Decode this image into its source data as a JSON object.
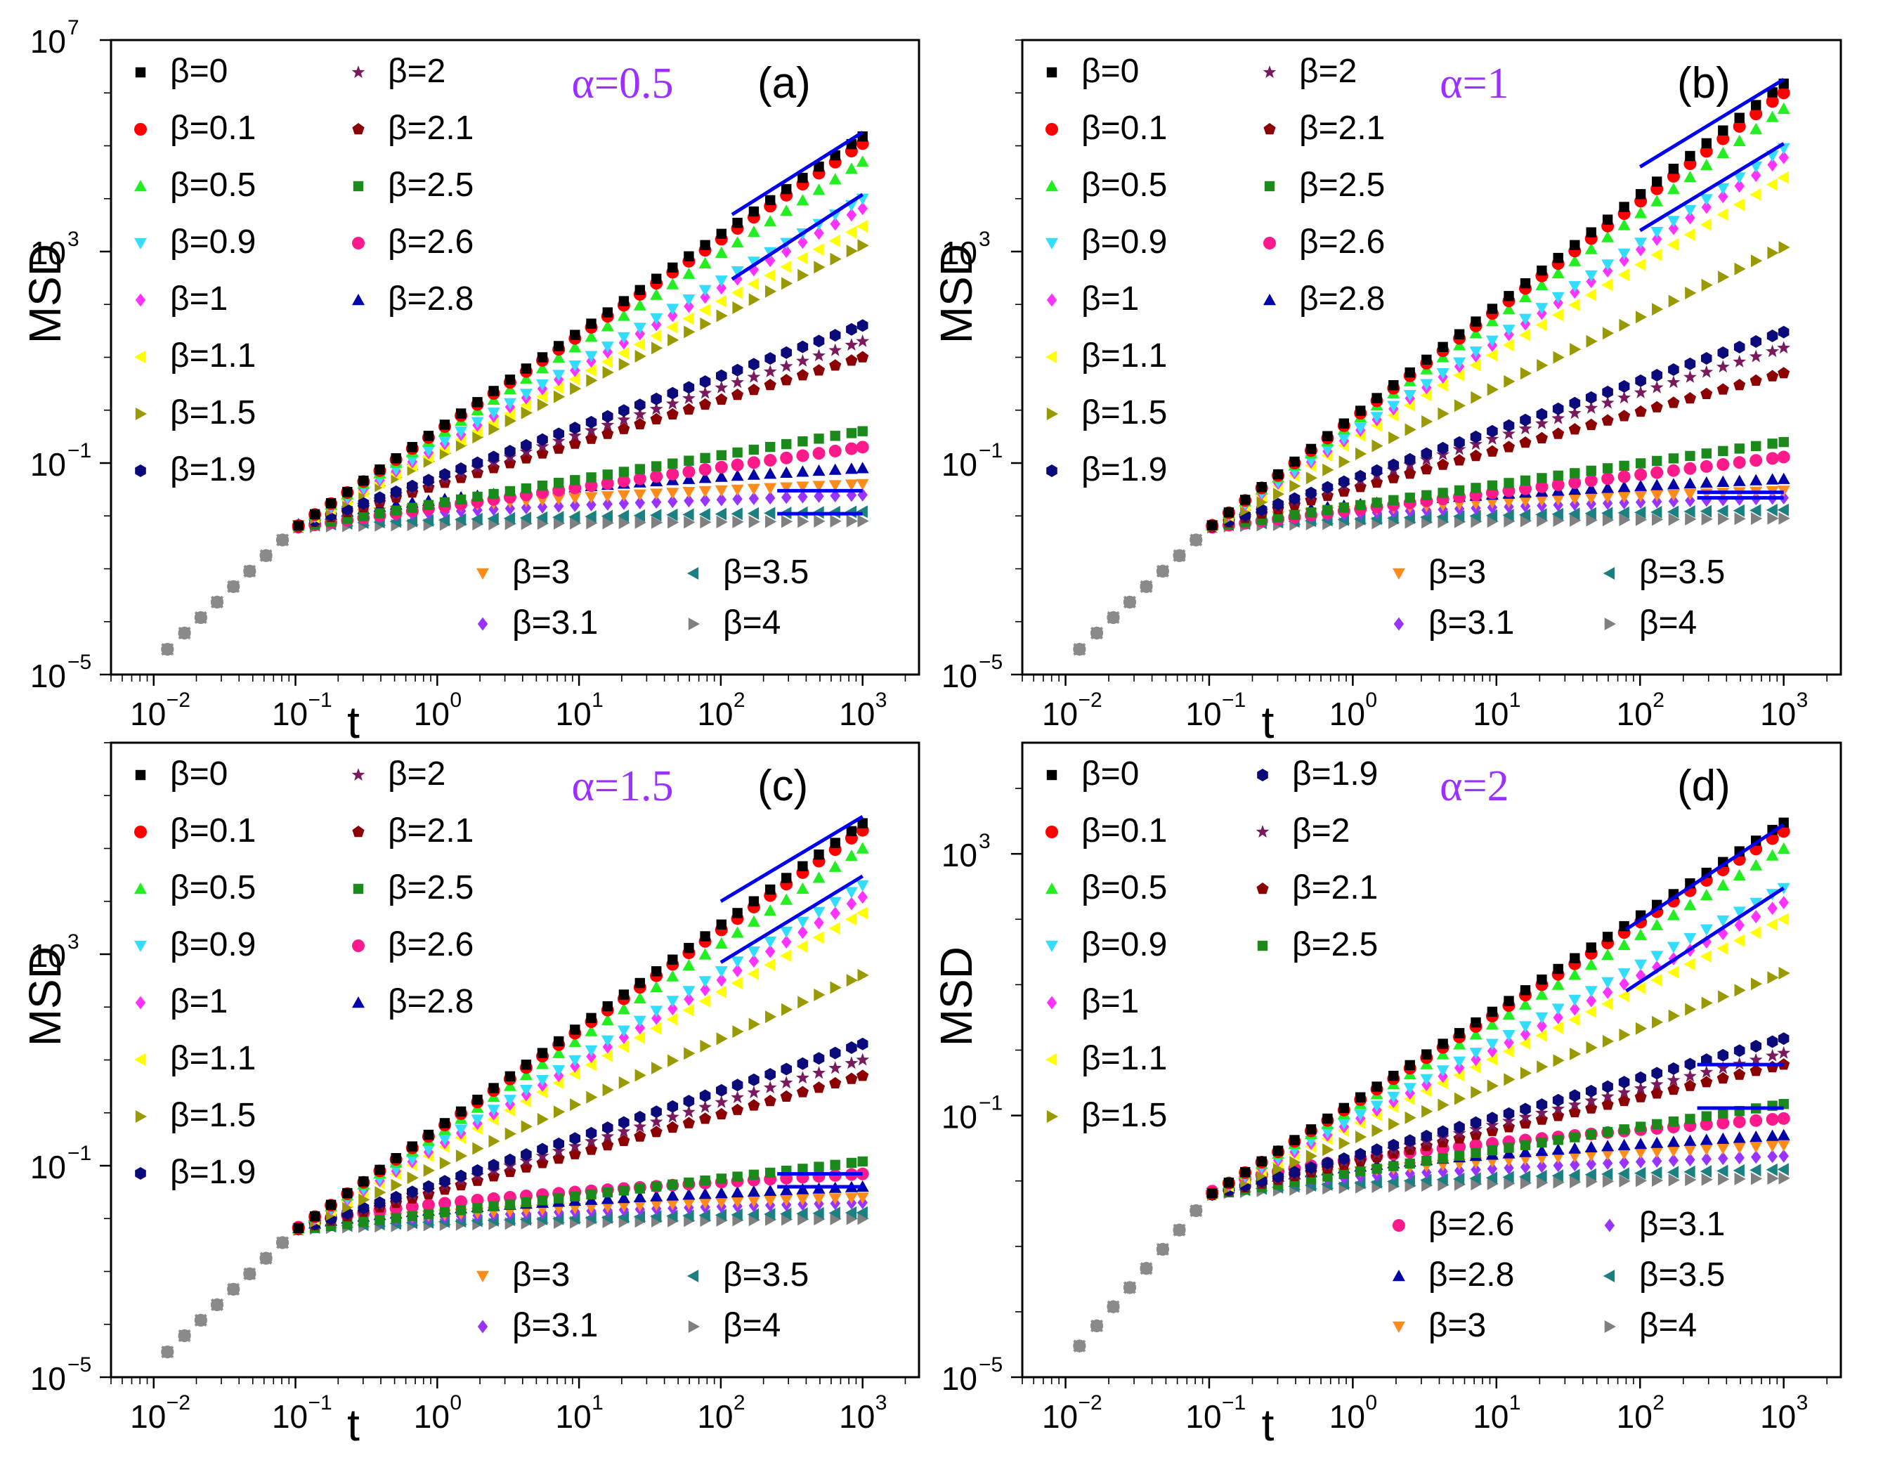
{
  "figure": {
    "t_values": [
      0.0125,
      0.0165,
      0.0215,
      0.028,
      0.0365,
      0.0475,
      0.062,
      0.081,
      0.105,
      0.137,
      0.178,
      0.232,
      0.302,
      0.393,
      0.512,
      0.667,
      0.868,
      1.13,
      1.47,
      1.92,
      2.5,
      3.26,
      4.24,
      5.52,
      7.19,
      9.36,
      12.2,
      15.9,
      20.7,
      26.9,
      35.1,
      45.7,
      59.5,
      77.5,
      101,
      131,
      171,
      223,
      290,
      378,
      492,
      641,
      835,
      1000
    ],
    "series_colors": {
      "0": "#000000",
      "0.1": "#ff0000",
      "0.5": "#22ee22",
      "0.9": "#33ddff",
      "1": "#ff33ff",
      "1.1": "#ffff00",
      "1.5": "#999900",
      "1.9": "#0a0a7a",
      "2": "#7a1a5e",
      "2.1": "#8b0000",
      "2.5": "#1a8a1a",
      "2.6": "#ff1a8c",
      "2.8": "#0000aa",
      "3": "#ff8c1a",
      "3.1": "#9933ff",
      "3.5": "#1a8080",
      "4": "#808080"
    },
    "series_markers": {
      "0": "square",
      "0.1": "circle",
      "0.5": "triangle-up",
      "0.9": "triangle-down",
      "1": "diamond",
      "1.1": "triangle-left",
      "1.5": "triangle-right",
      "1.9": "hexagon",
      "2": "star",
      "2.1": "pentagon",
      "2.5": "square",
      "2.6": "circle",
      "2.8": "triangle-up",
      "3": "triangle-down",
      "3.1": "diamond",
      "3.5": "triangle-left",
      "4": "triangle-right"
    },
    "fit_line_color": "#0000ee",
    "shared_start_point": {
      "t": 0.0125,
      "msd": 3e-05
    }
  },
  "chart_data": [
    {
      "type": "scatter",
      "panel": "a",
      "title_alpha": "α=0.5",
      "title_label": "(a)",
      "xlabel": "t",
      "ylabel": "MSD",
      "xscale": "log",
      "yscale": "log",
      "xlim": [
        0.005,
        2500
      ],
      "ylim": [
        1e-05,
        10000000
      ],
      "x_ticks": [
        {
          "base": "10",
          "exp": "−2",
          "value": 0.01
        },
        {
          "base": "10",
          "exp": "−1",
          "value": 0.1
        },
        {
          "base": "10",
          "exp": "0",
          "value": 1
        },
        {
          "base": "10",
          "exp": "1",
          "value": 10
        },
        {
          "base": "10",
          "exp": "2",
          "value": 100
        },
        {
          "base": "10",
          "exp": "3",
          "value": 1000
        }
      ],
      "y_ticks": [
        {
          "base": "10",
          "exp": "−5",
          "value": 1e-05
        },
        {
          "base": "10",
          "exp": "−1",
          "value": 0.1
        },
        {
          "base": "10",
          "exp": "3",
          "value": 1000
        },
        {
          "base": "10",
          "exp": "7",
          "value": 10000000
        }
      ],
      "crossover_t": 0.1,
      "msd_at_crossover": 0.006,
      "series": [
        {
          "beta": "0",
          "name": "β=0",
          "msd_end": 150000
        },
        {
          "beta": "0.1",
          "name": "β=0.1",
          "msd_end": 110000
        },
        {
          "beta": "0.5",
          "name": "β=0.5",
          "msd_end": 50000
        },
        {
          "beta": "0.9",
          "name": "β=0.9",
          "msd_end": 10000
        },
        {
          "beta": "1",
          "name": "β=1",
          "msd_end": 6500
        },
        {
          "beta": "1.1",
          "name": "β=1.1",
          "msd_end": 3000
        },
        {
          "beta": "1.5",
          "name": "β=1.5",
          "msd_end": 1300
        },
        {
          "beta": "1.9",
          "name": "β=1.9",
          "msd_end": 40
        },
        {
          "beta": "2",
          "name": "β=2",
          "msd_end": 20
        },
        {
          "beta": "2.1",
          "name": "β=2.1",
          "msd_end": 10
        },
        {
          "beta": "2.5",
          "name": "β=2.5",
          "msd_end": 0.4
        },
        {
          "beta": "2.6",
          "name": "β=2.6",
          "msd_end": 0.2
        },
        {
          "beta": "2.8",
          "name": "β=2.8",
          "msd_end": 0.08
        },
        {
          "beta": "3",
          "name": "β=3",
          "msd_end": 0.04
        },
        {
          "beta": "3.1",
          "name": "β=3.1",
          "msd_end": 0.025
        },
        {
          "beta": "3.5",
          "name": "β=3.5",
          "msd_end": 0.012
        },
        {
          "beta": "4",
          "name": "β=4",
          "msd_end": 0.008
        }
      ],
      "fit_lines": [
        {
          "t0": 120,
          "m0": 5000,
          "t1": 1000,
          "m1": 180000
        },
        {
          "t0": 120,
          "m0": 300,
          "t1": 1000,
          "m1": 12000
        },
        {
          "t0": 250,
          "m0": 0.03,
          "t1": 1000,
          "m1": 0.03
        },
        {
          "t0": 250,
          "m0": 0.011,
          "t1": 1000,
          "m1": 0.011
        }
      ],
      "legend_upper": {
        "position": "upper-left",
        "cols": [
          [
            "0",
            "0.1",
            "0.5",
            "0.9",
            "1",
            "1.1",
            "1.5",
            "1.9"
          ],
          [
            "2",
            "2.1",
            "2.5",
            "2.6",
            "2.8"
          ]
        ]
      },
      "legend_lower": {
        "position": "lower-right",
        "cols": [
          [
            "3",
            "3.1"
          ],
          [
            "3.5",
            "4"
          ]
        ]
      }
    },
    {
      "type": "scatter",
      "panel": "b",
      "title_alpha": "α=1",
      "title_label": "(b)",
      "xlabel": "t",
      "ylabel": "MSD",
      "xscale": "log",
      "yscale": "log",
      "xlim": [
        0.005,
        2500
      ],
      "ylim": [
        1e-05,
        10000000
      ],
      "x_ticks": [
        {
          "base": "10",
          "exp": "−2",
          "value": 0.01
        },
        {
          "base": "10",
          "exp": "−1",
          "value": 0.1
        },
        {
          "base": "10",
          "exp": "0",
          "value": 1
        },
        {
          "base": "10",
          "exp": "1",
          "value": 10
        },
        {
          "base": "10",
          "exp": "2",
          "value": 100
        },
        {
          "base": "10",
          "exp": "3",
          "value": 1000
        }
      ],
      "y_ticks": [
        {
          "base": "10",
          "exp": "−5",
          "value": 1e-05
        },
        {
          "base": "10",
          "exp": "−1",
          "value": 0.1
        },
        {
          "base": "10",
          "exp": "3",
          "value": 1000
        }
      ],
      "crossover_t": 0.1,
      "msd_at_crossover": 0.006,
      "series": [
        {
          "beta": "0",
          "name": "β=0",
          "msd_end": 1500000
        },
        {
          "beta": "0.1",
          "name": "β=0.1",
          "msd_end": 1000000
        },
        {
          "beta": "0.5",
          "name": "β=0.5",
          "msd_end": 500000
        },
        {
          "beta": "0.9",
          "name": "β=0.9",
          "msd_end": 90000
        },
        {
          "beta": "1",
          "name": "β=1",
          "msd_end": 60000
        },
        {
          "beta": "1.1",
          "name": "β=1.1",
          "msd_end": 25000
        },
        {
          "beta": "1.5",
          "name": "β=1.5",
          "msd_end": 1200
        },
        {
          "beta": "1.9",
          "name": "β=1.9",
          "msd_end": 30
        },
        {
          "beta": "2",
          "name": "β=2",
          "msd_end": 15
        },
        {
          "beta": "2.1",
          "name": "β=2.1",
          "msd_end": 5
        },
        {
          "beta": "2.5",
          "name": "β=2.5",
          "msd_end": 0.25
        },
        {
          "beta": "2.6",
          "name": "β=2.6",
          "msd_end": 0.13
        },
        {
          "beta": "2.8",
          "name": "β=2.8",
          "msd_end": 0.05
        },
        {
          "beta": "3",
          "name": "β=3",
          "msd_end": 0.03
        },
        {
          "beta": "3.1",
          "name": "β=3.1",
          "msd_end": 0.022
        },
        {
          "beta": "3.5",
          "name": "β=3.5",
          "msd_end": 0.013
        },
        {
          "beta": "4",
          "name": "β=4",
          "msd_end": 0.009
        }
      ],
      "fit_lines": [
        {
          "t0": 100,
          "m0": 40000,
          "t1": 1000,
          "m1": 1800000
        },
        {
          "t0": 100,
          "m0": 2500,
          "t1": 1000,
          "m1": 110000
        },
        {
          "t0": 250,
          "m0": 0.028,
          "t1": 1000,
          "m1": 0.028
        },
        {
          "t0": 250,
          "m0": 0.022,
          "t1": 1000,
          "m1": 0.022
        }
      ],
      "legend_upper": {
        "position": "upper-left",
        "cols": [
          [
            "0",
            "0.1",
            "0.5",
            "0.9",
            "1",
            "1.1",
            "1.5",
            "1.9"
          ],
          [
            "2",
            "2.1",
            "2.5",
            "2.6",
            "2.8"
          ]
        ]
      },
      "legend_lower": {
        "position": "lower-right",
        "cols": [
          [
            "3",
            "3.1"
          ],
          [
            "3.5",
            "4"
          ]
        ]
      }
    },
    {
      "type": "scatter",
      "panel": "c",
      "title_alpha": "α=1.5",
      "title_label": "(c)",
      "xlabel": "t",
      "ylabel": "MSD",
      "xscale": "log",
      "yscale": "log",
      "xlim": [
        0.005,
        2500
      ],
      "ylim": [
        1e-05,
        10000000
      ],
      "x_ticks": [
        {
          "base": "10",
          "exp": "−2",
          "value": 0.01
        },
        {
          "base": "10",
          "exp": "−1",
          "value": 0.1
        },
        {
          "base": "10",
          "exp": "0",
          "value": 1
        },
        {
          "base": "10",
          "exp": "1",
          "value": 10
        },
        {
          "base": "10",
          "exp": "2",
          "value": 100
        },
        {
          "base": "10",
          "exp": "3",
          "value": 1000
        }
      ],
      "y_ticks": [
        {
          "base": "10",
          "exp": "−5",
          "value": 1e-05
        },
        {
          "base": "10",
          "exp": "−1",
          "value": 0.1
        },
        {
          "base": "10",
          "exp": "3",
          "value": 1000
        }
      ],
      "crossover_t": 0.1,
      "msd_at_crossover": 0.006,
      "series": [
        {
          "beta": "0",
          "name": "β=0",
          "msd_end": 300000
        },
        {
          "beta": "0.1",
          "name": "β=0.1",
          "msd_end": 220000
        },
        {
          "beta": "0.5",
          "name": "β=0.5",
          "msd_end": 100000
        },
        {
          "beta": "0.9",
          "name": "β=0.9",
          "msd_end": 20000
        },
        {
          "beta": "1",
          "name": "β=1",
          "msd_end": 12000
        },
        {
          "beta": "1.1",
          "name": "β=1.1",
          "msd_end": 6000
        },
        {
          "beta": "1.5",
          "name": "β=1.5",
          "msd_end": 400
        },
        {
          "beta": "1.9",
          "name": "β=1.9",
          "msd_end": 20
        },
        {
          "beta": "2",
          "name": "β=2",
          "msd_end": 10
        },
        {
          "beta": "2.1",
          "name": "β=2.1",
          "msd_end": 5
        },
        {
          "beta": "2.5",
          "name": "β=2.5",
          "msd_end": 0.12
        },
        {
          "beta": "2.6",
          "name": "β=2.6",
          "msd_end": 0.07
        },
        {
          "beta": "2.8",
          "name": "β=2.8",
          "msd_end": 0.04
        },
        {
          "beta": "3",
          "name": "β=3",
          "msd_end": 0.025
        },
        {
          "beta": "3.1",
          "name": "β=3.1",
          "msd_end": 0.02
        },
        {
          "beta": "3.5",
          "name": "β=3.5",
          "msd_end": 0.013
        },
        {
          "beta": "4",
          "name": "β=4",
          "msd_end": 0.01
        }
      ],
      "fit_lines": [
        {
          "t0": 100,
          "m0": 10000,
          "t1": 1000,
          "m1": 400000
        },
        {
          "t0": 100,
          "m0": 700,
          "t1": 1000,
          "m1": 30000
        },
        {
          "t0": 250,
          "m0": 0.07,
          "t1": 1000,
          "m1": 0.07
        },
        {
          "t0": 250,
          "m0": 0.04,
          "t1": 1000,
          "m1": 0.04
        }
      ],
      "legend_upper": {
        "position": "upper-left",
        "cols": [
          [
            "0",
            "0.1",
            "0.5",
            "0.9",
            "1",
            "1.1",
            "1.5",
            "1.9"
          ],
          [
            "2",
            "2.1",
            "2.5",
            "2.6",
            "2.8"
          ]
        ]
      },
      "legend_lower": {
        "position": "lower-right",
        "cols": [
          [
            "3",
            "3.1"
          ],
          [
            "3.5",
            "4"
          ]
        ]
      }
    },
    {
      "type": "scatter",
      "panel": "d",
      "title_alpha": "α=2",
      "title_label": "(d)",
      "xlabel": "t",
      "ylabel": "MSD",
      "xscale": "log",
      "yscale": "log",
      "xlim": [
        0.005,
        2500
      ],
      "ylim": [
        1e-05,
        50000
      ],
      "x_ticks": [
        {
          "base": "10",
          "exp": "−2",
          "value": 0.01
        },
        {
          "base": "10",
          "exp": "−1",
          "value": 0.1
        },
        {
          "base": "10",
          "exp": "0",
          "value": 1
        },
        {
          "base": "10",
          "exp": "1",
          "value": 10
        },
        {
          "base": "10",
          "exp": "2",
          "value": 100
        },
        {
          "base": "10",
          "exp": "3",
          "value": 1000
        }
      ],
      "y_ticks": [
        {
          "base": "10",
          "exp": "−5",
          "value": 1e-05
        },
        {
          "base": "10",
          "exp": "−1",
          "value": 0.1
        },
        {
          "base": "10",
          "exp": "3",
          "value": 1000
        }
      ],
      "crossover_t": 0.1,
      "msd_at_crossover": 0.006,
      "series": [
        {
          "beta": "0",
          "name": "β=0",
          "msd_end": 3000
        },
        {
          "beta": "0.1",
          "name": "β=0.1",
          "msd_end": 2200
        },
        {
          "beta": "0.5",
          "name": "β=0.5",
          "msd_end": 1200
        },
        {
          "beta": "0.9",
          "name": "β=0.9",
          "msd_end": 300
        },
        {
          "beta": "1",
          "name": "β=1",
          "msd_end": 180
        },
        {
          "beta": "1.1",
          "name": "β=1.1",
          "msd_end": 100
        },
        {
          "beta": "1.5",
          "name": "β=1.5",
          "msd_end": 15
        },
        {
          "beta": "1.9",
          "name": "β=1.9",
          "msd_end": 1.5
        },
        {
          "beta": "2",
          "name": "β=2",
          "msd_end": 0.9
        },
        {
          "beta": "2.1",
          "name": "β=2.1",
          "msd_end": 0.6
        },
        {
          "beta": "2.5",
          "name": "β=2.5",
          "msd_end": 0.15
        },
        {
          "beta": "2.6",
          "name": "β=2.6",
          "msd_end": 0.09
        },
        {
          "beta": "2.8",
          "name": "β=2.8",
          "msd_end": 0.05
        },
        {
          "beta": "3",
          "name": "β=3",
          "msd_end": 0.035
        },
        {
          "beta": "3.1",
          "name": "β=3.1",
          "msd_end": 0.024
        },
        {
          "beta": "3.5",
          "name": "β=3.5",
          "msd_end": 0.015
        },
        {
          "beta": "4",
          "name": "β=4",
          "msd_end": 0.011
        }
      ],
      "fit_lines": [
        {
          "t0": 80,
          "m0": 70,
          "t1": 1000,
          "m1": 2800
        },
        {
          "t0": 80,
          "m0": 8,
          "t1": 1000,
          "m1": 300
        },
        {
          "t0": 250,
          "m0": 0.6,
          "t1": 1000,
          "m1": 0.6
        },
        {
          "t0": 250,
          "m0": 0.13,
          "t1": 1000,
          "m1": 0.13
        }
      ],
      "legend_upper": {
        "position": "upper-left",
        "cols": [
          [
            "0",
            "0.1",
            "0.5",
            "0.9",
            "1",
            "1.1",
            "1.5"
          ],
          [
            "1.9",
            "2",
            "2.1",
            "2.5"
          ]
        ]
      },
      "legend_lower": {
        "position": "lower-right",
        "cols": [
          [
            "2.6",
            "2.8",
            "3"
          ],
          [
            "3.1",
            "3.5",
            "4"
          ]
        ]
      }
    }
  ]
}
